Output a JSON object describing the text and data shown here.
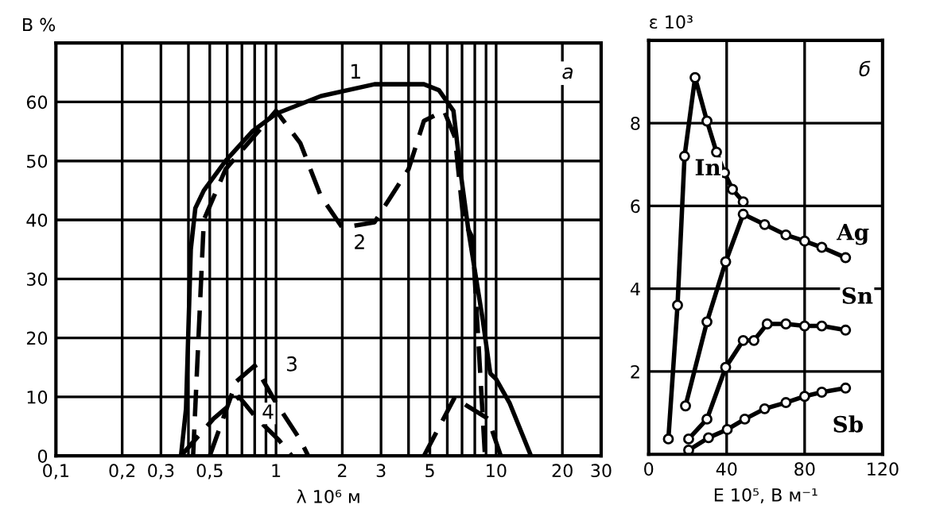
{
  "chart_data": [
    {
      "type": "line",
      "ylabel": "B %",
      "xlabel": "λ 10⁶ м",
      "log": "x",
      "xlim": [
        0.1,
        30
      ],
      "ylim": [
        0,
        70
      ],
      "xticks": [
        {
          "value": 0.1,
          "label": "0,1"
        },
        {
          "value": 0.2,
          "label": "0,2"
        },
        {
          "value": 0.3,
          "label": "0,3"
        },
        {
          "value": 0.4,
          "label": null
        },
        {
          "value": 0.5,
          "label": "0,5"
        },
        {
          "value": 0.6,
          "label": null
        },
        {
          "value": 0.7,
          "label": null
        },
        {
          "value": 0.8,
          "label": null
        },
        {
          "value": 0.9,
          "label": null
        },
        1,
        2,
        3,
        {
          "value": 4,
          "label": null
        },
        5,
        {
          "value": 6,
          "label": null
        },
        {
          "value": 7,
          "label": null
        },
        {
          "value": 8,
          "label": null
        },
        {
          "value": 9,
          "label": null
        },
        10,
        20,
        30
      ],
      "yticks": [
        0,
        10,
        20,
        30,
        40,
        50,
        60
      ],
      "grid": true,
      "legend": false,
      "series": [
        {
          "color": "#000000",
          "line_style": "solid",
          "x": [
            0.37,
            0.39,
            0.41,
            0.43,
            0.47,
            0.59,
            0.78,
            1.0,
            1.6,
            2.8,
            4.7,
            5.5,
            6.4,
            6.9,
            7.5,
            8.7,
            9.4,
            10,
            11.5,
            14.4
          ],
          "values": [
            0,
            8,
            35,
            42,
            45,
            50,
            55,
            58,
            61,
            63,
            63,
            62,
            58.5,
            48,
            38,
            23,
            14,
            13,
            9,
            0
          ]
        },
        {
          "color": "#000000",
          "line_style": "dashed",
          "x": [
            0.42,
            0.47,
            0.59,
            1.0,
            1.29,
            1.6,
            2.0,
            2.8,
            4.0,
            4.7,
            5.8,
            6.5,
            7.1,
            7.8,
            8.2,
            8.9
          ],
          "values": [
            0,
            40,
            48.6,
            58.5,
            53,
            44,
            38.7,
            39.6,
            48.6,
            56.8,
            58.5,
            54,
            40,
            37,
            23,
            0
          ]
        },
        {
          "color": "#000000",
          "line_style": "dashed",
          "x": [
            0.5,
            0.66,
            0.8,
            1.0,
            1.29,
            1.4,
            3,
            4.7,
            6.5,
            7.3,
            9.2,
            10.5
          ],
          "values": [
            0,
            12.6,
            15.3,
            9,
            2.7,
            0,
            null,
            0,
            10,
            8.6,
            6.3,
            0
          ]
        },
        {
          "color": "#000000",
          "line_style": "dashed",
          "x": [
            0.37,
            0.52,
            0.68,
            0.82,
            1.03,
            1.18
          ],
          "values": [
            0,
            6.3,
            10,
            6.3,
            2.7,
            0
          ]
        }
      ],
      "annotations": [
        "а",
        {
          "text": "1",
          "x": 2.3,
          "y": 64.9
        },
        {
          "text": "2",
          "x": 2.4,
          "y": 36
        },
        {
          "text": "3",
          "x": 1.18,
          "y": 15.3
        },
        {
          "text": "4",
          "x": 0.92,
          "y": 7.2
        }
      ]
    },
    {
      "type": "line",
      "ylabel": "ε 10³",
      "xlabel": "E 10⁵, В м⁻¹",
      "xlim": [
        0,
        120
      ],
      "ylim": [
        0,
        10
      ],
      "xticks": [
        0,
        40,
        80,
        120
      ],
      "yticks": [
        2,
        4,
        6,
        8
      ],
      "grid": true,
      "legend": false,
      "marker": "circle",
      "series": [
        {
          "name": "In",
          "color": "#000000",
          "x": [
            10.1,
            14.8,
            18.4,
            23.8,
            29.9,
            34.8,
            38.9,
            43,
            48.5
          ],
          "values": [
            0.37,
            3.6,
            7.2,
            9.1,
            8.05,
            7.3,
            6.8,
            6.4,
            6.1
          ]
        },
        {
          "name": "Ag",
          "color": "#000000",
          "x": [
            18.9,
            29.9,
            39.5,
            48.5,
            59.5,
            70.4,
            80,
            88.8,
            101
          ],
          "values": [
            1.17,
            3.2,
            4.65,
            5.8,
            5.55,
            5.3,
            5.15,
            5.0,
            4.75
          ]
        },
        {
          "name": "Sn",
          "color": "#000000",
          "x": [
            20.5,
            29.9,
            39.5,
            48.5,
            54,
            60.8,
            70.4,
            80,
            88.8,
            101
          ],
          "values": [
            0.37,
            0.85,
            2.1,
            2.75,
            2.75,
            3.15,
            3.15,
            3.1,
            3.1,
            3.0
          ]
        },
        {
          "name": "Sb",
          "color": "#000000",
          "x": [
            20.5,
            30.7,
            40.3,
            49.3,
            59.5,
            70.4,
            80,
            88.8,
            101
          ],
          "values": [
            0.1,
            0.4,
            0.6,
            0.85,
            1.1,
            1.25,
            1.4,
            1.5,
            1.6
          ]
        }
      ],
      "annotations": [
        "б"
      ]
    }
  ]
}
